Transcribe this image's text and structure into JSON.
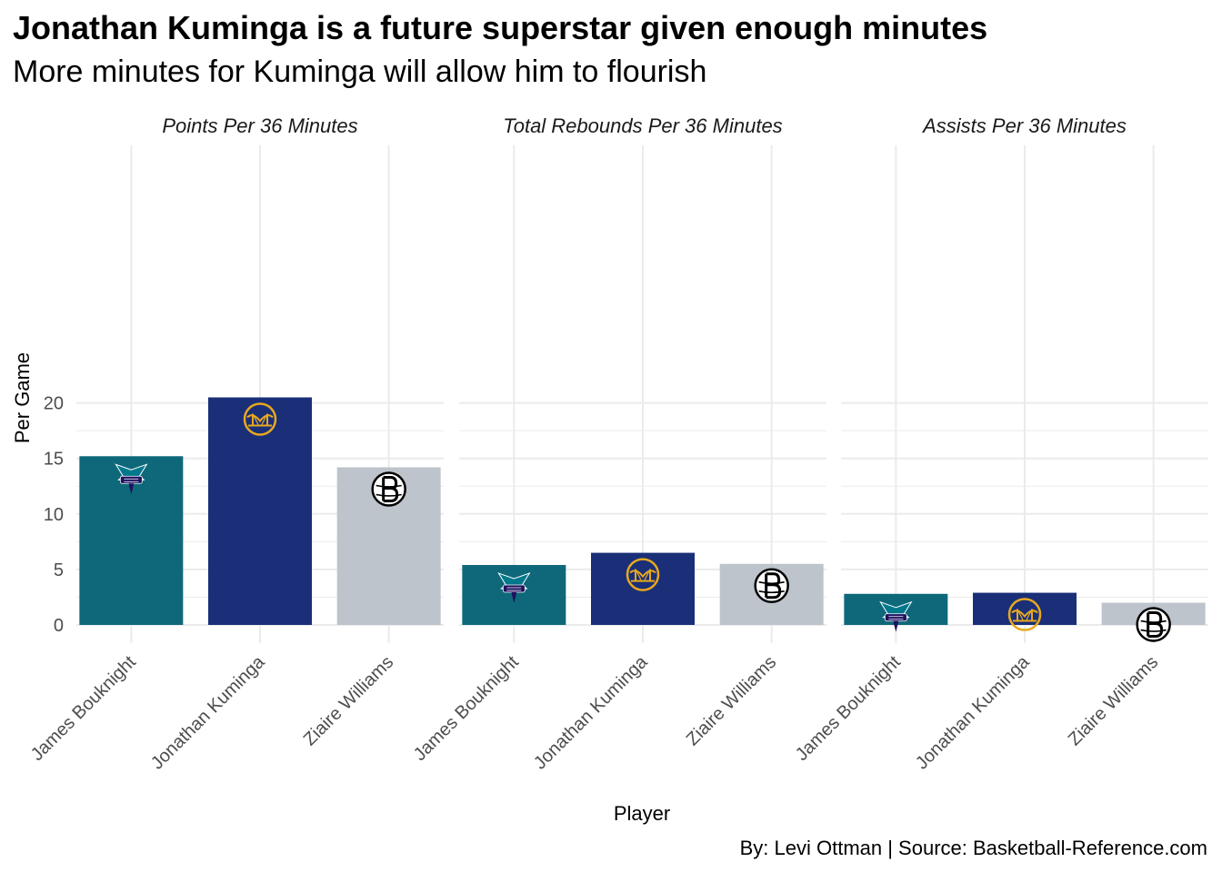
{
  "title": "Jonathan Kuminga is a future superstar given enough minutes",
  "subtitle": "More minutes for Kuminga will allow him to flourish",
  "caption": "By: Levi Ottman  |  Source: Basketball-Reference.com",
  "colors": {
    "grid": "#ebebeb",
    "bouknight": "#0e687a",
    "kuminga": "#1a2f78",
    "williams": "#bdc4cb",
    "warriors_gold": "#e8a81f",
    "hornets_purple": "#1d1160",
    "hornets_teal": "#00788c"
  },
  "chart_data": {
    "type": "bar",
    "facets": [
      "Points Per 36 Minutes",
      "Total Rebounds Per 36 Minutes",
      "Assists Per 36 Minutes"
    ],
    "categories": [
      "James Bouknight",
      "Jonathan Kuminga",
      "Ziaire Williams"
    ],
    "team_logos": [
      "hornets-logo",
      "warriors-logo",
      "nets-logo"
    ],
    "values": [
      [
        15.2,
        20.5,
        14.2
      ],
      [
        5.4,
        6.5,
        5.5
      ],
      [
        2.8,
        2.9,
        2.0
      ]
    ],
    "xlabel": "Player",
    "ylabel": "Per Game",
    "ylim": [
      0,
      21
    ],
    "yticks": [
      0,
      5,
      10,
      15,
      20
    ],
    "grid": true,
    "legend": "none"
  }
}
